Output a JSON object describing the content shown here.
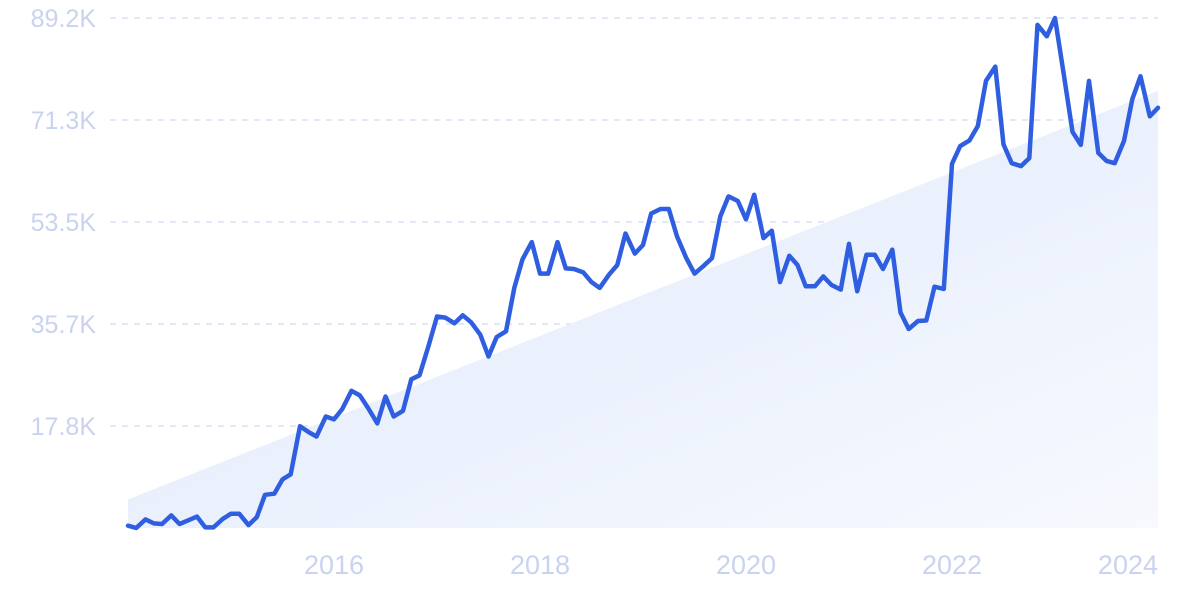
{
  "chart_data": {
    "type": "line",
    "title": "",
    "xlabel": "",
    "ylabel": "",
    "x_ticks": [
      "2016",
      "2018",
      "2020",
      "2022",
      "2024"
    ],
    "y_ticks": [
      "17.8K",
      "35.7K",
      "53.5K",
      "71.3K",
      "89.2K"
    ],
    "xlim": [
      2014.0,
      2024.0
    ],
    "ylim": [
      0,
      89200
    ],
    "grid": "horizontal dashed",
    "colors": {
      "line": "#2f5fe0",
      "trend_fill_top": "#dde8fb",
      "tick_text": "#c9d3ef",
      "grid": "#d9e0f2"
    },
    "trend": {
      "x": [
        2014.0,
        2024.0
      ],
      "y": [
        5000,
        76500
      ]
    },
    "series": [
      {
        "x": [
          2014.0,
          2014.08,
          2014.17,
          2014.25,
          2014.33,
          2014.42,
          2014.5,
          2014.58,
          2014.67,
          2014.75,
          2014.83,
          2014.92,
          2015.0,
          2015.08,
          2015.17,
          2015.25,
          2015.33,
          2015.42,
          2015.5,
          2015.58,
          2015.67,
          2015.75,
          2015.83,
          2015.92,
          2016.0,
          2016.08,
          2016.17,
          2016.25,
          2016.33,
          2016.42,
          2016.5,
          2016.58,
          2016.67,
          2016.75,
          2016.83,
          2016.92,
          2017.0,
          2017.08,
          2017.17,
          2017.25,
          2017.33,
          2017.42,
          2017.5,
          2017.58,
          2017.67,
          2017.75,
          2017.83,
          2017.92,
          2018.0,
          2018.08,
          2018.17,
          2018.25,
          2018.33,
          2018.42,
          2018.5,
          2018.58,
          2018.67,
          2018.75,
          2018.83,
          2018.92,
          2019.0,
          2019.08,
          2019.17,
          2019.25,
          2019.33,
          2019.42,
          2019.5,
          2019.58,
          2019.67,
          2019.75,
          2019.83,
          2019.92,
          2020.0,
          2020.08,
          2020.17,
          2020.25,
          2020.33,
          2020.42,
          2020.5,
          2020.58,
          2020.67,
          2020.75,
          2020.83,
          2020.92,
          2021.0,
          2021.08,
          2021.17,
          2021.25,
          2021.33,
          2021.42,
          2021.5,
          2021.58,
          2021.67,
          2021.75,
          2021.83,
          2021.92,
          2022.0,
          2022.08,
          2022.17,
          2022.25,
          2022.33,
          2022.42,
          2022.5,
          2022.58,
          2022.67,
          2022.75,
          2022.83,
          2022.92,
          2023.0,
          2023.08,
          2023.17,
          2023.25,
          2023.33,
          2023.42,
          2023.5,
          2023.58,
          2023.67,
          2023.75,
          2023.83,
          2023.92,
          2024.0
        ],
        "y": [
          400,
          0,
          1500,
          800,
          700,
          2200,
          700,
          1300,
          2000,
          100,
          100,
          1600,
          2500,
          2500,
          500,
          1900,
          5800,
          6000,
          8500,
          9400,
          17800,
          16800,
          16000,
          19500,
          19000,
          20800,
          24000,
          23200,
          21000,
          18300,
          23000,
          19500,
          20500,
          26000,
          26700,
          32000,
          37000,
          36800,
          35800,
          37200,
          36000,
          33800,
          30000,
          33400,
          34400,
          42000,
          47000,
          50000,
          44500,
          44500,
          50000,
          45400,
          45300,
          44700,
          43000,
          42000,
          44300,
          46000,
          51500,
          48000,
          49500,
          55000,
          55800,
          55800,
          51000,
          47200,
          44500,
          45700,
          47200,
          54500,
          58000,
          57200,
          54000,
          58300,
          50700,
          52000,
          43000,
          47600,
          46000,
          42300,
          42300,
          44000,
          42500,
          41700,
          49700,
          41400,
          47800,
          47800,
          45300,
          48700,
          37700,
          34800,
          36200,
          36300,
          42200,
          41800,
          63700,
          66800,
          67800,
          70300,
          78200,
          80700,
          67100,
          63800,
          63300,
          64700,
          88000,
          86000,
          89200,
          80000,
          69300,
          67000,
          78200,
          65600,
          64200,
          63800,
          67700,
          75000,
          79000,
          72000,
          73500
        ]
      }
    ]
  }
}
